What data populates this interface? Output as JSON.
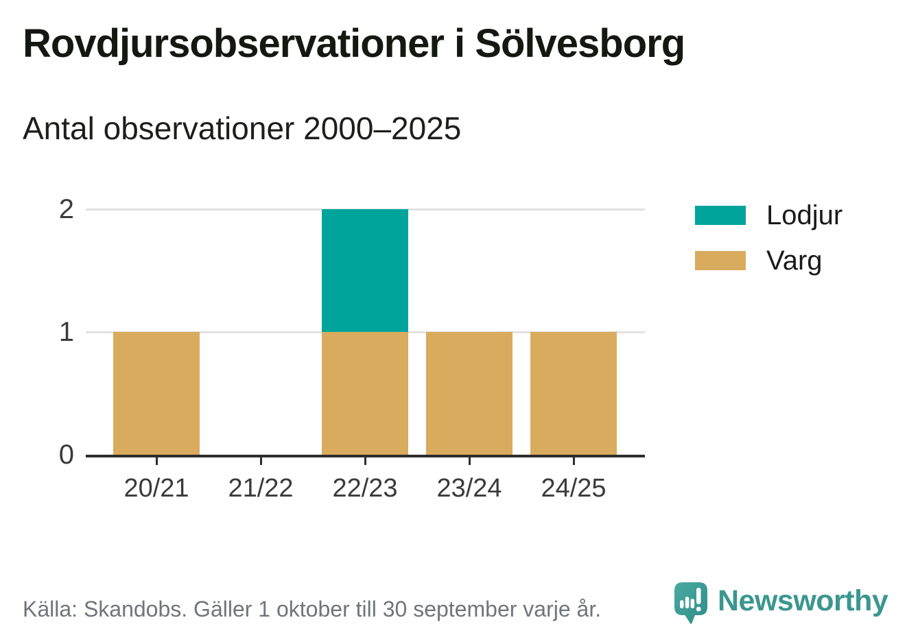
{
  "header": {
    "title": "Rovdjursobservationer i Sölvesborg",
    "subtitle": "Antal observationer 2000–2025"
  },
  "chart_data": {
    "type": "bar",
    "stacked": true,
    "categories": [
      "20/21",
      "21/22",
      "22/23",
      "23/24",
      "24/25"
    ],
    "series": [
      {
        "name": "Lodjur",
        "color": "#00a49b",
        "values": [
          0,
          0,
          1,
          0,
          0
        ]
      },
      {
        "name": "Varg",
        "color": "#d9ab5e",
        "values": [
          1,
          0,
          1,
          1,
          1
        ]
      }
    ],
    "title": "Rovdjursobservationer i Sölvesborg",
    "subtitle": "Antal observationer 2000–2025",
    "xlabel": "",
    "ylabel": "",
    "ylim": [
      0,
      2
    ],
    "yticks": [
      0,
      1,
      2
    ],
    "grid": "horizontal",
    "legend_position": "right-top"
  },
  "legend": {
    "items": [
      {
        "label": "Lodjur",
        "color": "#00a49b"
      },
      {
        "label": "Varg",
        "color": "#d9ab5e"
      }
    ]
  },
  "footer": {
    "source": "Källa: Skandobs. Gäller 1 oktober till 30 september varje år.",
    "brand": "Newsworthy"
  },
  "colors": {
    "lodjur": "#00a49b",
    "varg": "#d9ab5e",
    "gridline": "#e2e2e2",
    "axis": "#2d2d2d",
    "brand_teal": "#3b968f"
  }
}
